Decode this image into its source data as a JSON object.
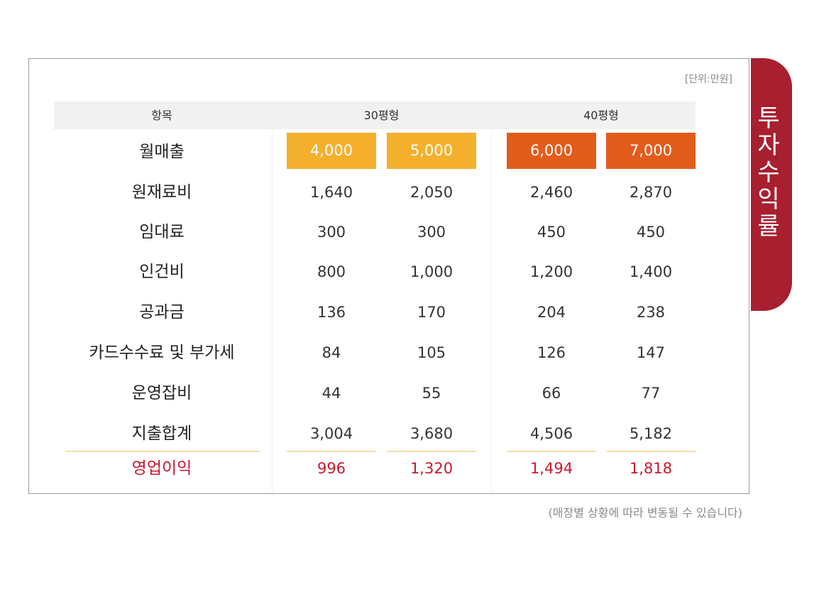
{
  "unit_label": "[단위:만원]",
  "side_tab": "투자수익률",
  "headers": {
    "item": "항목",
    "group_30": "30평형",
    "group_40": "40평형"
  },
  "rows": [
    {
      "label": "월매출",
      "values": [
        "4,000",
        "5,000",
        "6,000",
        "7,000"
      ]
    },
    {
      "label": "원재료비",
      "values": [
        "1,640",
        "2,050",
        "2,460",
        "2,870"
      ]
    },
    {
      "label": "임대료",
      "values": [
        "300",
        "300",
        "450",
        "450"
      ]
    },
    {
      "label": "인건비",
      "values": [
        "800",
        "1,000",
        "1,200",
        "1,400"
      ]
    },
    {
      "label": "공과금",
      "values": [
        "136",
        "170",
        "204",
        "238"
      ]
    },
    {
      "label": "카드수수료 및 부가세",
      "values": [
        "84",
        "105",
        "126",
        "147"
      ]
    },
    {
      "label": "운영잡비",
      "values": [
        "44",
        "55",
        "66",
        "77"
      ]
    },
    {
      "label": "지출합계",
      "values": [
        "3,004",
        "3,680",
        "4,506",
        "5,182"
      ]
    },
    {
      "label": "영업이익",
      "values": [
        "996",
        "1,320",
        "1,494",
        "1,818"
      ]
    }
  ],
  "footnote": "(매장별 상황에 따라 변동될 수 있습니다)",
  "colors": {
    "tab": "#a81f2f",
    "highlight_30": "#f4b02d",
    "highlight_40": "#e25c1c",
    "profit_text": "#c8192f"
  }
}
